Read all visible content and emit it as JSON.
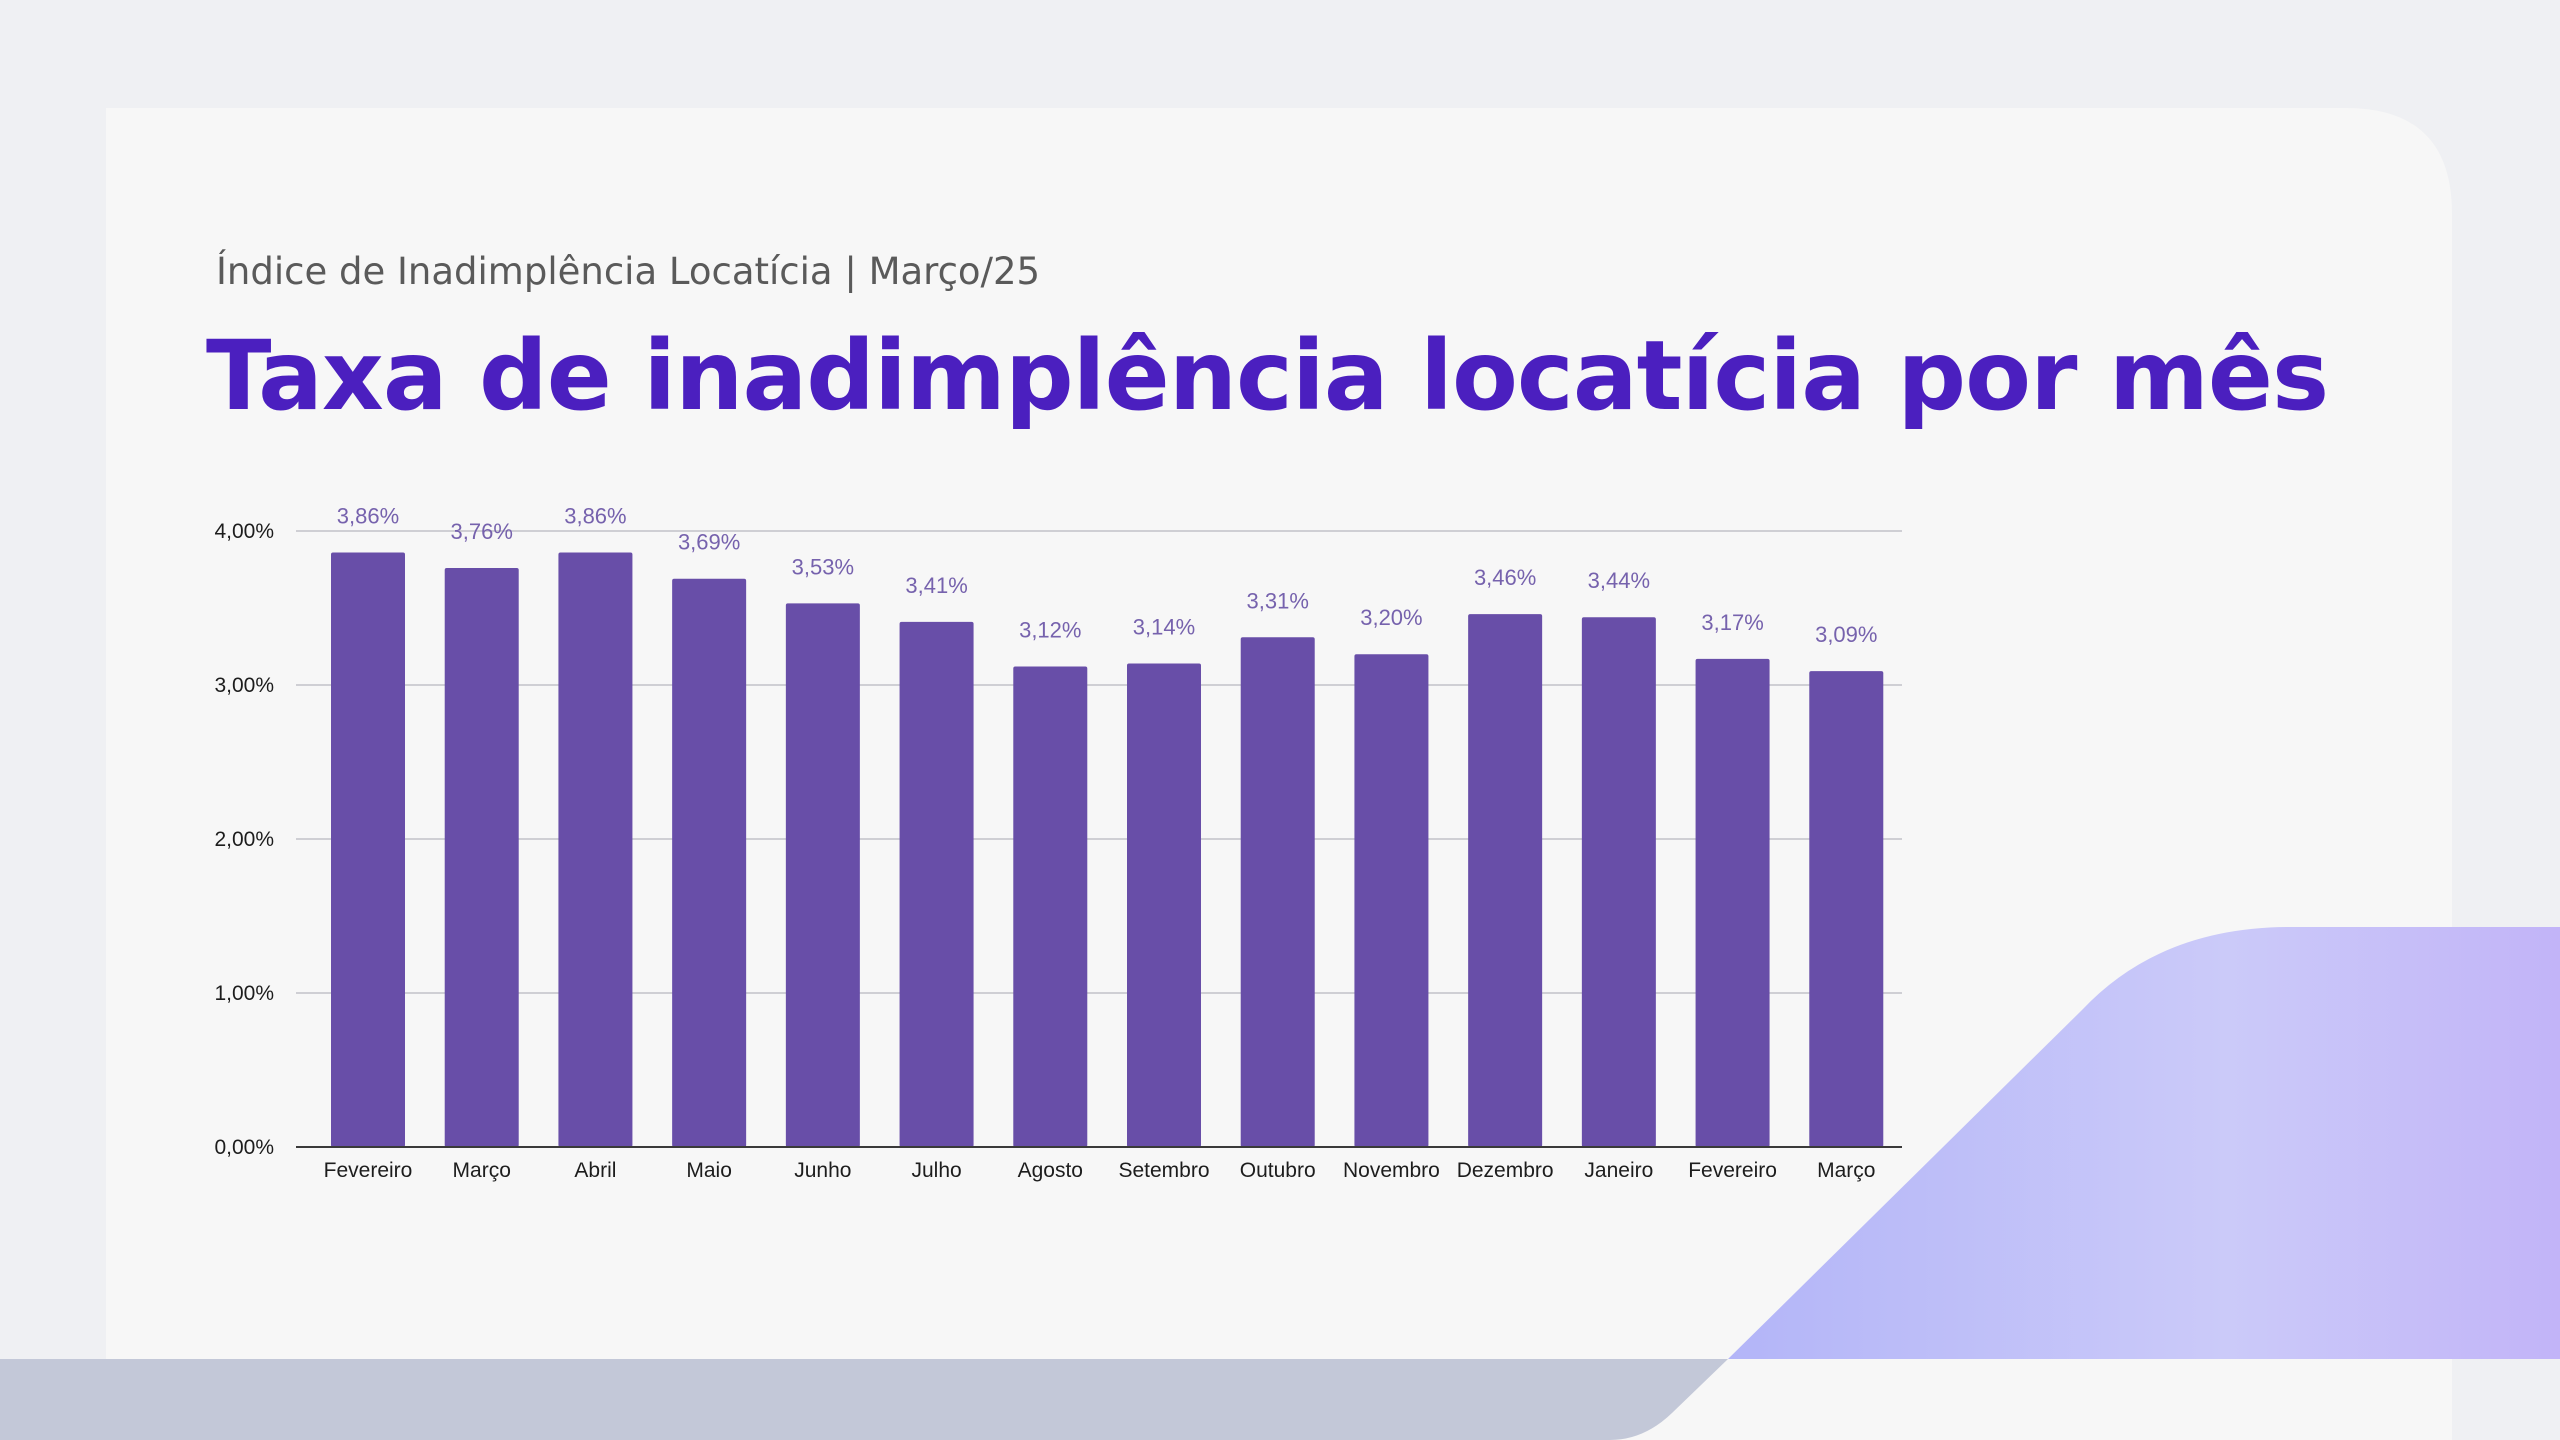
{
  "header": {
    "eyebrow": "Índice de Inadimplência Locatícia | Março/25",
    "title": "Taxa de inadimplência locatícia por mês"
  },
  "colors": {
    "title": "#4b1fbf",
    "bar": "#684ea8",
    "value_label": "#7662ad",
    "gridline": "#cfcfd4",
    "footer_band": "#c3c8d8",
    "accent_gradient": [
      "#b3b5f8",
      "#c2b4f8"
    ]
  },
  "chart_data": {
    "type": "bar",
    "categories": [
      "Fevereiro",
      "Março",
      "Abril",
      "Maio",
      "Junho",
      "Julho",
      "Agosto",
      "Setembro",
      "Outubro",
      "Novembro",
      "Dezembro",
      "Janeiro",
      "Fevereiro",
      "Março"
    ],
    "values": [
      3.86,
      3.76,
      3.86,
      3.69,
      3.53,
      3.41,
      3.12,
      3.14,
      3.31,
      3.2,
      3.46,
      3.44,
      3.17,
      3.09
    ],
    "value_labels": [
      "3,86%",
      "3,76%",
      "3,86%",
      "3,69%",
      "3,53%",
      "3,41%",
      "3,12%",
      "3,14%",
      "3,31%",
      "3,20%",
      "3,46%",
      "3,44%",
      "3,17%",
      "3,09%"
    ],
    "ylim": [
      0,
      4
    ],
    "yticks": [
      0,
      1,
      2,
      3,
      4
    ],
    "ytick_labels": [
      "0,00%",
      "1,00%",
      "2,00%",
      "3,00%",
      "4,00%"
    ],
    "grid": true,
    "legend": "none"
  }
}
